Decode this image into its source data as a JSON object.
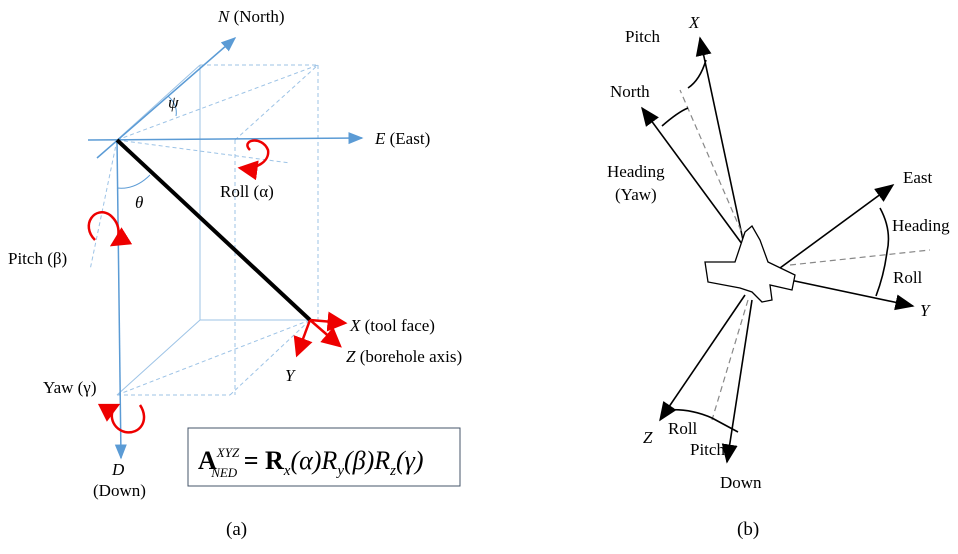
{
  "panel_a": {
    "north": {
      "letter": "N",
      "name": "(North)"
    },
    "east": {
      "letter": "E",
      "name": "(East)"
    },
    "psi": "ψ",
    "theta": "θ",
    "roll": "Roll (α)",
    "pitch": "Pitch (β)",
    "yaw": "Yaw (γ)",
    "x_axis": {
      "letter": "X",
      "name": "(tool face)"
    },
    "z_axis": {
      "letter": "Z",
      "name": "(borehole axis)"
    },
    "y_axis": "Y",
    "down": {
      "letter": "D",
      "name": "(Down)"
    },
    "formula": [
      "A",
      "XYZ",
      "NED",
      " = R",
      "x",
      "(α)R",
      "y",
      "(β)R",
      "z",
      "(γ)"
    ],
    "caption": "(a)"
  },
  "panel_b": {
    "x_axis": "X",
    "pitch_top": "Pitch",
    "north": "North",
    "heading_yaw": [
      "Heading",
      "(Yaw)"
    ],
    "east": "East",
    "heading_right": "Heading",
    "roll_right": "Roll",
    "y_axis": "Y",
    "z_axis": "Z",
    "roll_bottom": "Roll",
    "pitch_bottom": "Pitch",
    "down": "Down",
    "caption": "(b)"
  }
}
